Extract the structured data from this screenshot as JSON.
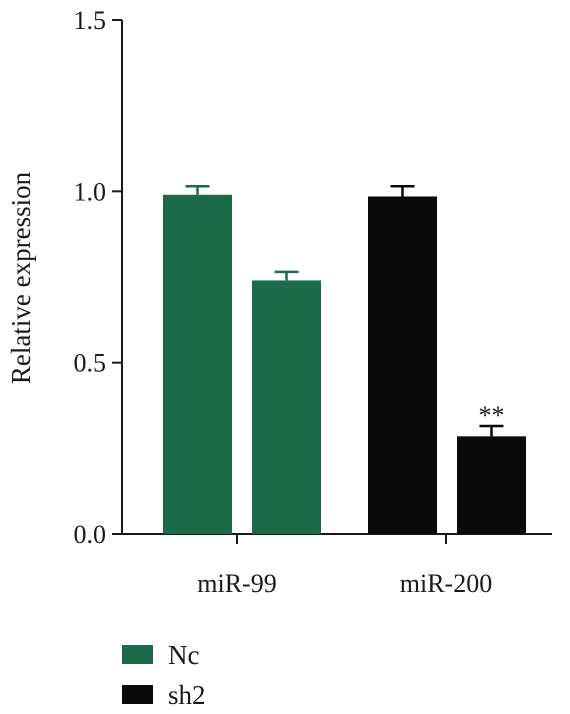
{
  "chart_data": {
    "type": "bar",
    "ylabel": "Relative expression",
    "ylim": [
      0,
      1.5
    ],
    "yticks": [
      "0.0",
      "0.5",
      "1.0",
      "1.5"
    ],
    "categories": [
      "miR-99",
      "miR-200"
    ],
    "series": [
      {
        "name": "Nc",
        "color": "#1b6b4b",
        "bars": [
          {
            "category": "miR-99",
            "value": 0.99,
            "error": 0.025
          },
          {
            "category": "miR-99",
            "value": 0.74,
            "error": 0.025
          }
        ]
      },
      {
        "name": "sh2",
        "color": "#0a0a0a",
        "bars": [
          {
            "category": "miR-200",
            "value": 0.985,
            "error": 0.03
          },
          {
            "category": "miR-200",
            "value": 0.285,
            "error": 0.03,
            "annotation": "**"
          }
        ]
      }
    ],
    "legend": {
      "position": "bottom-left",
      "entries": [
        {
          "label": "Nc",
          "color": "#1b6b4b"
        },
        {
          "label": "sh2",
          "color": "#0a0a0a"
        }
      ]
    },
    "grid": false
  }
}
